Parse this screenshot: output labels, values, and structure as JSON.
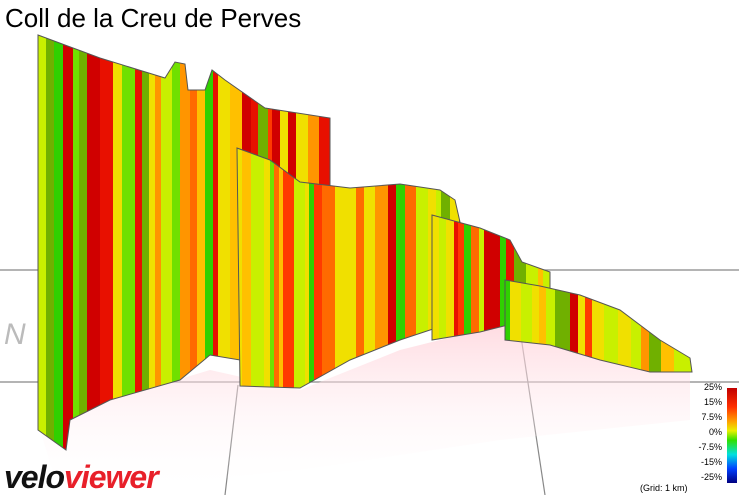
{
  "header": {
    "title": "Coll de la Creu de Perves"
  },
  "compass": "N",
  "legend": {
    "labels": [
      "25%",
      "15%",
      "7.5%",
      "0%",
      "-7.5%",
      "-15%",
      "-25%"
    ],
    "note": "(Grid: 1 km)"
  },
  "logo": {
    "part1": "velo",
    "part2": "viewer"
  }
}
